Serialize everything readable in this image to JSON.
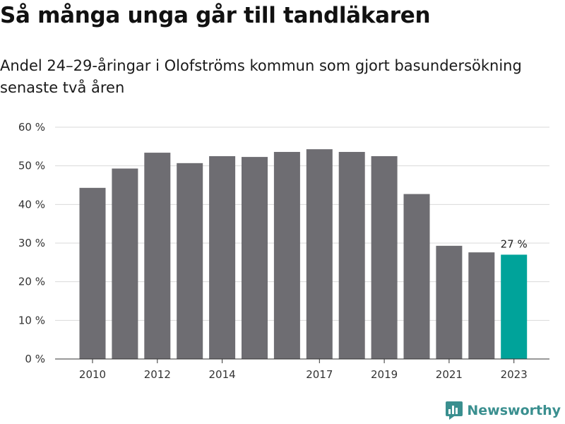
{
  "header": {
    "title": "Så många unga går till tandläkaren",
    "subtitle": "Andel 24–29-åringar i Olofströms kommun som gjort basundersökning senaste två åren"
  },
  "brand": {
    "name": "Newsworthy",
    "icon": "newsworthy-logo-icon",
    "color": "#3a8f8f"
  },
  "chart_data": {
    "type": "bar",
    "categories": [
      "2010",
      "2011",
      "2012",
      "2013",
      "2014",
      "2015",
      "2016",
      "2017",
      "2018",
      "2019",
      "2020",
      "2021",
      "2022",
      "2023"
    ],
    "values": [
      44.3,
      49.3,
      53.4,
      50.7,
      52.5,
      52.3,
      53.6,
      54.3,
      53.6,
      52.5,
      42.7,
      29.3,
      27.6,
      27.0
    ],
    "x_tick_labels": [
      "2010",
      "2012",
      "2014",
      "2017",
      "2019",
      "2021",
      "2023"
    ],
    "y_ticks": [
      0,
      10,
      20,
      30,
      40,
      50,
      60
    ],
    "y_tick_labels": [
      "0 %",
      "10 %",
      "20 %",
      "30 %",
      "40 %",
      "50 %",
      "60 %"
    ],
    "ylim": [
      0,
      60
    ],
    "grid": true,
    "data_labels": [
      {
        "category": "2023",
        "text": "27 %"
      }
    ],
    "colors": {
      "bar": "#6e6d72",
      "highlight": "#00a39a",
      "grid": "#d9d9d9",
      "axis": "#333333"
    },
    "highlight_category": "2023",
    "title": "",
    "xlabel": "",
    "ylabel": ""
  }
}
